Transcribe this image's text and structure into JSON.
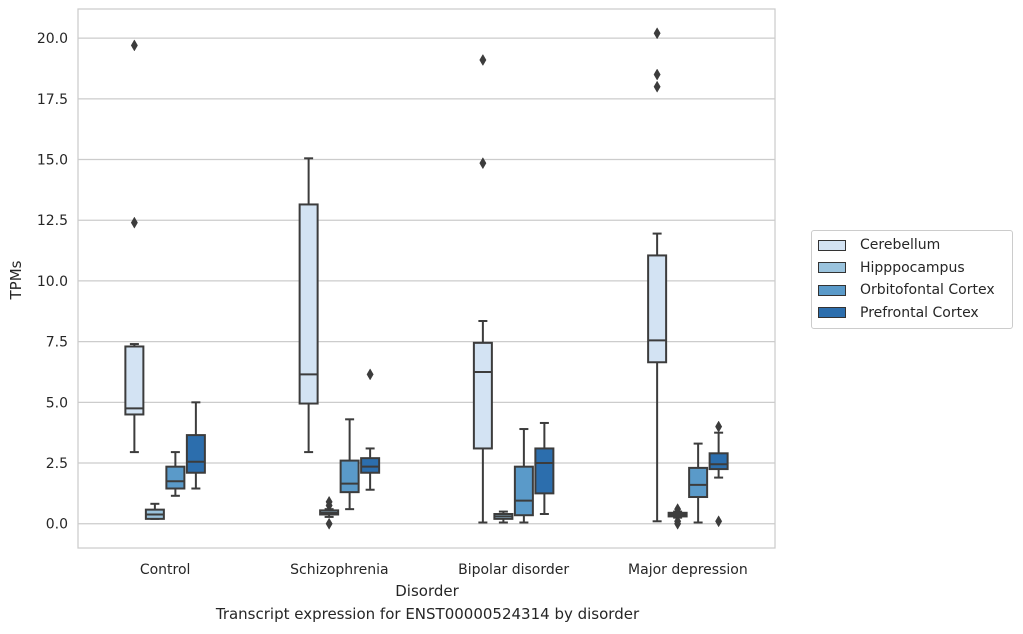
{
  "chart_data": {
    "type": "box",
    "title": "",
    "caption": "Transcript expression for ENST00000524314 by disorder",
    "xlabel": "Disorder",
    "ylabel": "TPMs",
    "ylim": [
      -1.0,
      21.2
    ],
    "yticks": [
      "0.0",
      "2.5",
      "5.0",
      "7.5",
      "10.0",
      "12.5",
      "15.0",
      "17.5",
      "20.0"
    ],
    "grid": "horizontal",
    "legend_position": "right",
    "categories": [
      "Control",
      "Schizophrenia",
      "Bipolar disorder",
      "Major depression"
    ],
    "series": [
      {
        "name": "Cerebellum",
        "color": "#d3e3f3",
        "boxes": [
          {
            "whislo": 2.95,
            "q1": 4.5,
            "med": 4.75,
            "q3": 7.3,
            "whishi": 7.4,
            "fliers": [
              12.4,
              19.7
            ]
          },
          {
            "whislo": 2.95,
            "q1": 4.95,
            "med": 6.15,
            "q3": 13.15,
            "whishi": 15.05,
            "fliers": []
          },
          {
            "whislo": 0.05,
            "q1": 3.1,
            "med": 6.25,
            "q3": 7.45,
            "whishi": 8.35,
            "fliers": [
              14.85,
              19.1
            ]
          },
          {
            "whislo": 0.1,
            "q1": 6.65,
            "med": 7.55,
            "q3": 11.05,
            "whishi": 11.95,
            "fliers": [
              18.0,
              18.5,
              20.2
            ]
          }
        ]
      },
      {
        "name": "Hipppocampus",
        "color": "#9ac3dd",
        "boxes": [
          {
            "whislo": 0.2,
            "q1": 0.2,
            "med": 0.38,
            "q3": 0.58,
            "whishi": 0.82,
            "fliers": []
          },
          {
            "whislo": 0.28,
            "q1": 0.38,
            "med": 0.45,
            "q3": 0.55,
            "whishi": 0.6,
            "fliers": [
              0.0,
              0.75,
              0.9
            ]
          },
          {
            "whislo": 0.05,
            "q1": 0.2,
            "med": 0.3,
            "q3": 0.4,
            "whishi": 0.5,
            "fliers": []
          },
          {
            "whislo": 0.25,
            "q1": 0.3,
            "med": 0.38,
            "q3": 0.45,
            "whishi": 0.5,
            "fliers": [
              0.0,
              0.1,
              0.6
            ]
          }
        ]
      },
      {
        "name": "Orbitofontal Cortex",
        "color": "#5a9ac9",
        "boxes": [
          {
            "whislo": 1.15,
            "q1": 1.45,
            "med": 1.75,
            "q3": 2.35,
            "whishi": 2.95,
            "fliers": []
          },
          {
            "whislo": 0.6,
            "q1": 1.3,
            "med": 1.65,
            "q3": 2.6,
            "whishi": 4.3,
            "fliers": []
          },
          {
            "whislo": 0.05,
            "q1": 0.35,
            "med": 0.95,
            "q3": 2.35,
            "whishi": 3.9,
            "fliers": []
          },
          {
            "whislo": 0.05,
            "q1": 1.1,
            "med": 1.6,
            "q3": 2.3,
            "whishi": 3.3,
            "fliers": []
          }
        ]
      },
      {
        "name": "Prefrontal Cortex",
        "color": "#2c6ead",
        "boxes": [
          {
            "whislo": 1.45,
            "q1": 2.1,
            "med": 2.55,
            "q3": 3.65,
            "whishi": 5.0,
            "fliers": []
          },
          {
            "whislo": 1.4,
            "q1": 2.1,
            "med": 2.35,
            "q3": 2.7,
            "whishi": 3.1,
            "fliers": [
              6.15
            ]
          },
          {
            "whislo": 0.4,
            "q1": 1.25,
            "med": 2.5,
            "q3": 3.1,
            "whishi": 4.15,
            "fliers": []
          },
          {
            "whislo": 1.9,
            "q1": 2.25,
            "med": 2.45,
            "q3": 2.9,
            "whishi": 3.75,
            "fliers": [
              0.1,
              4.0
            ]
          }
        ]
      }
    ]
  }
}
